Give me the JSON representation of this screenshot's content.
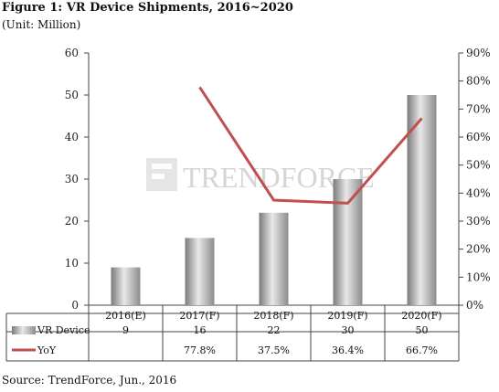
{
  "title": "Figure 1: VR Device Shipments, 2016~2020",
  "subtitle": "(Unit: Million)",
  "source": "Source: TrendForce, Jun., 2016",
  "watermark": "TRENDFORCE",
  "chart_data": {
    "type": "bar",
    "categories": [
      "2016(E)",
      "2017(F)",
      "2018(F)",
      "2019(F)",
      "2020(F)"
    ],
    "series": [
      {
        "name": "VR Device",
        "type": "bar",
        "axis": "left",
        "values": [
          9,
          16,
          22,
          30,
          50
        ],
        "color": "#a8a8a8"
      },
      {
        "name": "YoY",
        "type": "line",
        "axis": "right",
        "values": [
          null,
          77.8,
          37.5,
          36.4,
          66.7
        ],
        "color": "#c0504d"
      }
    ],
    "table": {
      "VR Device": [
        "9",
        "16",
        "22",
        "30",
        "50"
      ],
      "YoY": [
        "",
        "77.8%",
        "37.5%",
        "36.4%",
        "66.7%"
      ]
    },
    "ylim_left": [
      0,
      60
    ],
    "yticks_left": [
      0,
      10,
      20,
      30,
      40,
      50,
      60
    ],
    "ylim_right": [
      0,
      90
    ],
    "yticks_right": [
      "0%",
      "10%",
      "20%",
      "30%",
      "40%",
      "50%",
      "60%",
      "70%",
      "80%",
      "90%"
    ],
    "grid": false,
    "legend": "data-table"
  }
}
